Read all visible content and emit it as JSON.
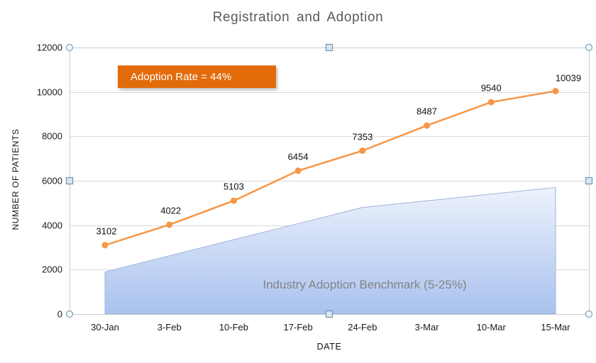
{
  "chart_data": {
    "type": "line",
    "title": "Registration and Adoption",
    "xlabel": "DATE",
    "ylabel": "NUMBER OF PATIENTS",
    "categories": [
      "30-Jan",
      "3-Feb",
      "10-Feb",
      "17-Feb",
      "24-Feb",
      "3-Mar",
      "10-Mar",
      "15-Mar"
    ],
    "series": [
      {
        "role": "patients-line",
        "type": "line",
        "color": "#F79646",
        "values": [
          3102,
          4022,
          5103,
          6454,
          7353,
          8487,
          9540,
          10039
        ],
        "data_labels_visible": true
      },
      {
        "role": "benchmark-area",
        "name": "Industry Adoption Benchmark (5-25%)",
        "type": "area",
        "gradient_top": "#EDF2FC",
        "gradient_bottom": "#A9C2EE",
        "border_color": "#9FB4D8",
        "values": [
          1900,
          2625,
          3350,
          4075,
          4800,
          5100,
          5400,
          5700
        ]
      }
    ],
    "ylim": [
      0,
      12000
    ],
    "yticks": [
      0,
      2000,
      4000,
      6000,
      8000,
      10000,
      12000
    ],
    "grid": true,
    "legend": "none"
  },
  "annotation": {
    "label": "Adoption Rate = 44%",
    "bg_color": "#E26B0A",
    "text_color": "#FFFFFF"
  },
  "colors": {
    "title_text": "#595959",
    "gridline": "#D9D9D9",
    "plot_border": "#C9CDD1",
    "benchmark_text": "#848484",
    "tick_text": "#1A1A1A",
    "handle_circle_fill": "#F4FAFC",
    "handle_circle_stroke": "#7FA0B5",
    "handle_square_fill": "#D7E7F2",
    "handle_square_stroke": "#6E93AD"
  },
  "selection": {
    "handles_visible": true
  }
}
